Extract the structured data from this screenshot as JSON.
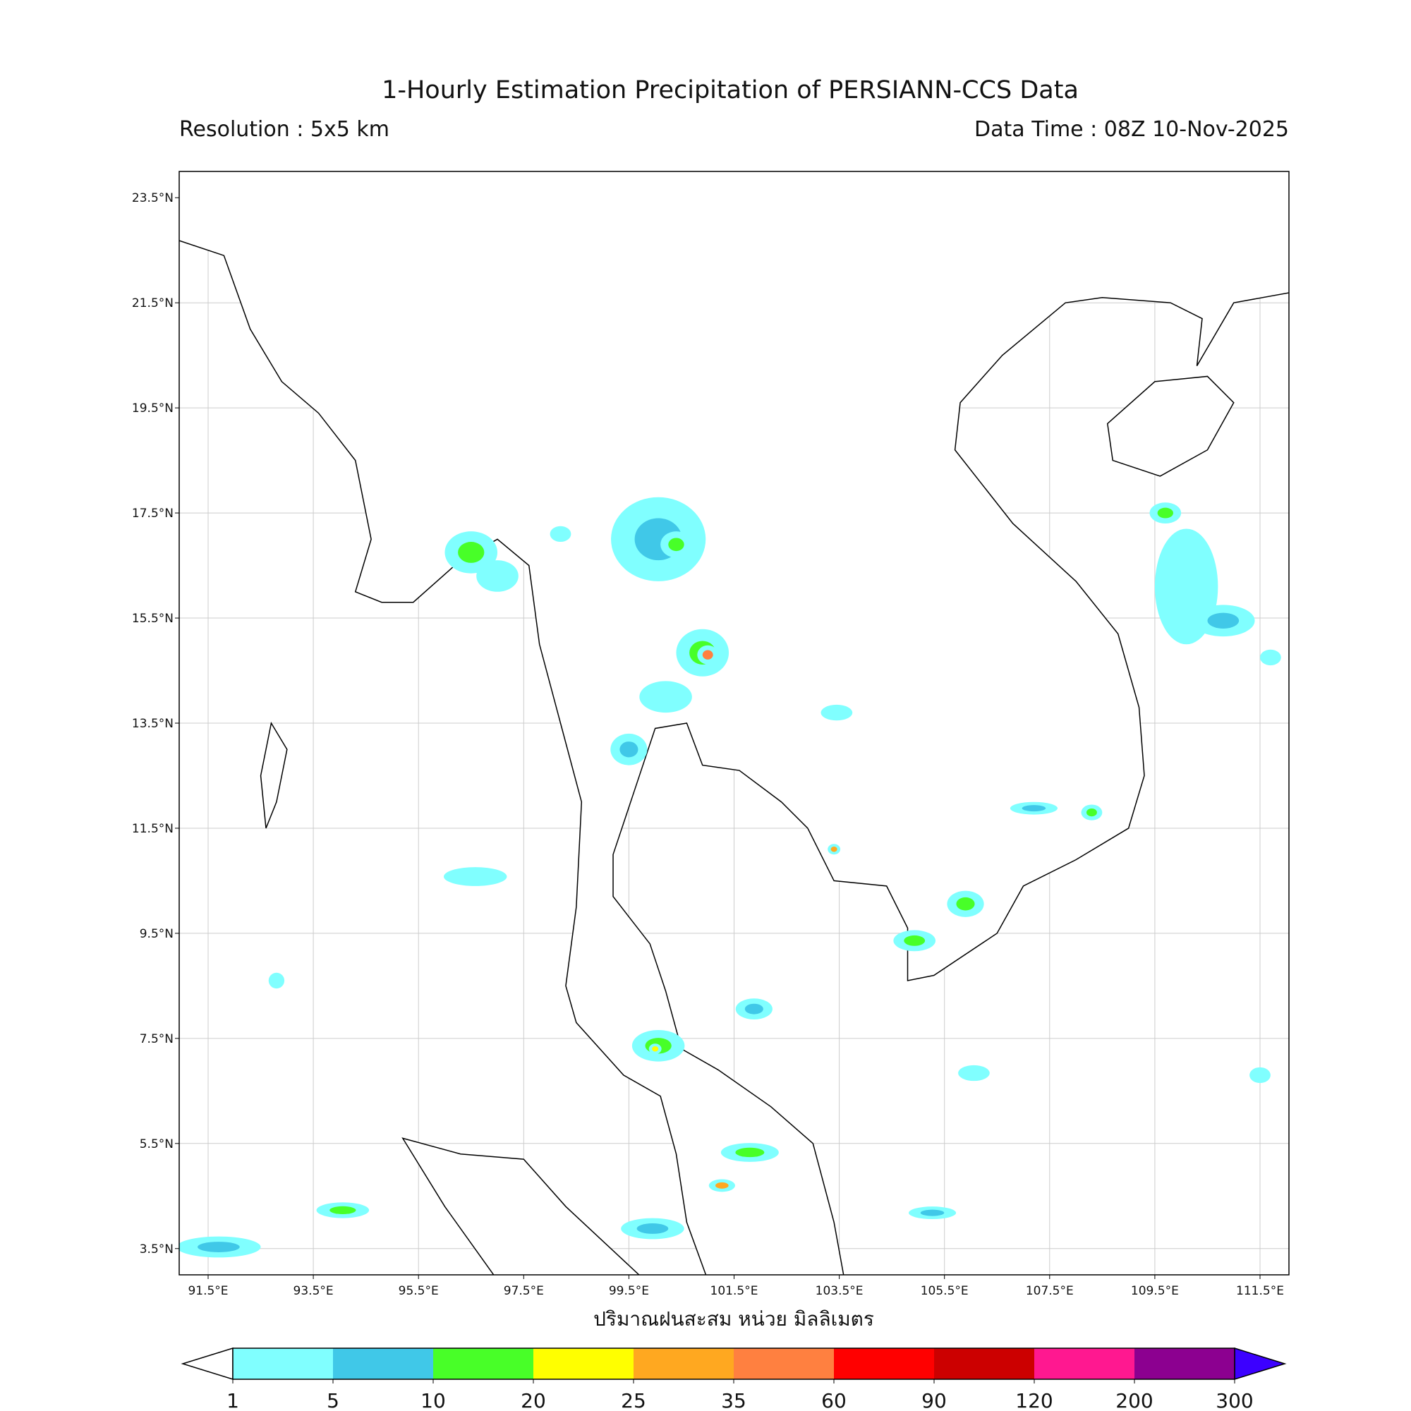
{
  "header": {
    "title": "1-Hourly Estimation Precipitation of PERSIANN-CCS Data",
    "resolution": "Resolution : 5x5 km",
    "data_time": "Data Time : 08Z 10-Nov-2025"
  },
  "map": {
    "extent_lon": [
      90.95,
      112.05
    ],
    "extent_lat": [
      3.0,
      24.0
    ],
    "grid": true,
    "lon_ticks": [
      "91.5°E",
      "93.5°E",
      "95.5°E",
      "97.5°E",
      "99.5°E",
      "101.5°E",
      "103.5°E",
      "105.5°E",
      "107.5°E",
      "109.5°E",
      "111.5°E"
    ],
    "lon_values": [
      91.5,
      93.5,
      95.5,
      97.5,
      99.5,
      101.5,
      103.5,
      105.5,
      107.5,
      109.5,
      111.5
    ],
    "lat_ticks": [
      "23.5°N",
      "21.5°N",
      "19.5°N",
      "17.5°N",
      "15.5°N",
      "13.5°N",
      "11.5°N",
      "9.5°N",
      "7.5°N",
      "5.5°N",
      "3.5°N"
    ],
    "lat_values": [
      23.5,
      21.5,
      19.5,
      17.5,
      15.5,
      13.5,
      11.5,
      9.5,
      7.5,
      5.5,
      3.5
    ],
    "xlabel": "ปริมาณฝนสะสม หน่วย มิลลิเมตร",
    "land_color": "#ffffff",
    "coast_color": "#000000"
  },
  "precip_cells": [
    {
      "lon": 96.5,
      "lat": 16.75,
      "rx": 0.5,
      "ry": 0.4,
      "mm": 12
    },
    {
      "lon": 97.0,
      "lat": 16.3,
      "rx": 0.4,
      "ry": 0.3,
      "mm": 3
    },
    {
      "lon": 100.06,
      "lat": 17.0,
      "rx": 0.9,
      "ry": 0.8,
      "mm": 8
    },
    {
      "lon": 100.4,
      "lat": 16.9,
      "rx": 0.3,
      "ry": 0.25,
      "mm": 15
    },
    {
      "lon": 100.9,
      "lat": 14.84,
      "rx": 0.5,
      "ry": 0.45,
      "mm": 15
    },
    {
      "lon": 101.0,
      "lat": 14.8,
      "rx": 0.2,
      "ry": 0.18,
      "mm": 40
    },
    {
      "lon": 99.5,
      "lat": 13.0,
      "rx": 0.35,
      "ry": 0.3,
      "mm": 6
    },
    {
      "lon": 100.2,
      "lat": 14.0,
      "rx": 0.5,
      "ry": 0.3,
      "mm": 4
    },
    {
      "lon": 100.06,
      "lat": 7.36,
      "rx": 0.5,
      "ry": 0.3,
      "mm": 12
    },
    {
      "lon": 100.0,
      "lat": 7.3,
      "rx": 0.12,
      "ry": 0.1,
      "mm": 22
    },
    {
      "lon": 104.93,
      "lat": 9.36,
      "rx": 0.4,
      "ry": 0.2,
      "mm": 14
    },
    {
      "lon": 105.9,
      "lat": 10.06,
      "rx": 0.35,
      "ry": 0.25,
      "mm": 11
    },
    {
      "lon": 110.1,
      "lat": 16.1,
      "rx": 0.6,
      "ry": 1.1,
      "mm": 3
    },
    {
      "lon": 110.8,
      "lat": 15.45,
      "rx": 0.6,
      "ry": 0.3,
      "mm": 8
    },
    {
      "lon": 109.7,
      "lat": 17.5,
      "rx": 0.3,
      "ry": 0.2,
      "mm": 12
    },
    {
      "lon": 91.7,
      "lat": 3.53,
      "rx": 0.8,
      "ry": 0.2,
      "mm": 8
    },
    {
      "lon": 94.06,
      "lat": 4.23,
      "rx": 0.5,
      "ry": 0.15,
      "mm": 12
    },
    {
      "lon": 101.8,
      "lat": 5.33,
      "rx": 0.55,
      "ry": 0.18,
      "mm": 10
    },
    {
      "lon": 99.95,
      "lat": 3.88,
      "rx": 0.6,
      "ry": 0.2,
      "mm": 7
    },
    {
      "lon": 105.27,
      "lat": 4.18,
      "rx": 0.45,
      "ry": 0.12,
      "mm": 8
    },
    {
      "lon": 96.58,
      "lat": 10.58,
      "rx": 0.6,
      "ry": 0.18,
      "mm": 3
    },
    {
      "lon": 101.88,
      "lat": 8.06,
      "rx": 0.35,
      "ry": 0.2,
      "mm": 8
    },
    {
      "lon": 107.2,
      "lat": 11.88,
      "rx": 0.45,
      "ry": 0.12,
      "mm": 5
    },
    {
      "lon": 108.3,
      "lat": 11.8,
      "rx": 0.2,
      "ry": 0.15,
      "mm": 12
    },
    {
      "lon": 103.45,
      "lat": 13.7,
      "rx": 0.3,
      "ry": 0.15,
      "mm": 4
    },
    {
      "lon": 106.06,
      "lat": 6.84,
      "rx": 0.3,
      "ry": 0.15,
      "mm": 3
    },
    {
      "lon": 111.5,
      "lat": 6.8,
      "rx": 0.2,
      "ry": 0.15,
      "mm": 4
    },
    {
      "lon": 111.7,
      "lat": 14.75,
      "rx": 0.2,
      "ry": 0.15,
      "mm": 3
    },
    {
      "lon": 101.27,
      "lat": 4.7,
      "rx": 0.25,
      "ry": 0.12,
      "mm": 30
    },
    {
      "lon": 92.8,
      "lat": 8.6,
      "rx": 0.15,
      "ry": 0.15,
      "mm": 3
    },
    {
      "lon": 103.4,
      "lat": 11.1,
      "rx": 0.12,
      "ry": 0.1,
      "mm": 30
    },
    {
      "lon": 98.2,
      "lat": 17.1,
      "rx": 0.2,
      "ry": 0.15,
      "mm": 4
    }
  ],
  "colorbar": {
    "boundaries": [
      "1",
      "5",
      "10",
      "20",
      "25",
      "35",
      "60",
      "90",
      "120",
      "200",
      "300"
    ],
    "colors": [
      "#80ffff",
      "#40c8e8",
      "#48ff28",
      "#ffff00",
      "#ffa820",
      "#ff8040",
      "#ff0000",
      "#cc0000",
      "#ff1890",
      "#8c0090"
    ],
    "under_color": "#ffffff",
    "over_color": "#3c00ff"
  }
}
